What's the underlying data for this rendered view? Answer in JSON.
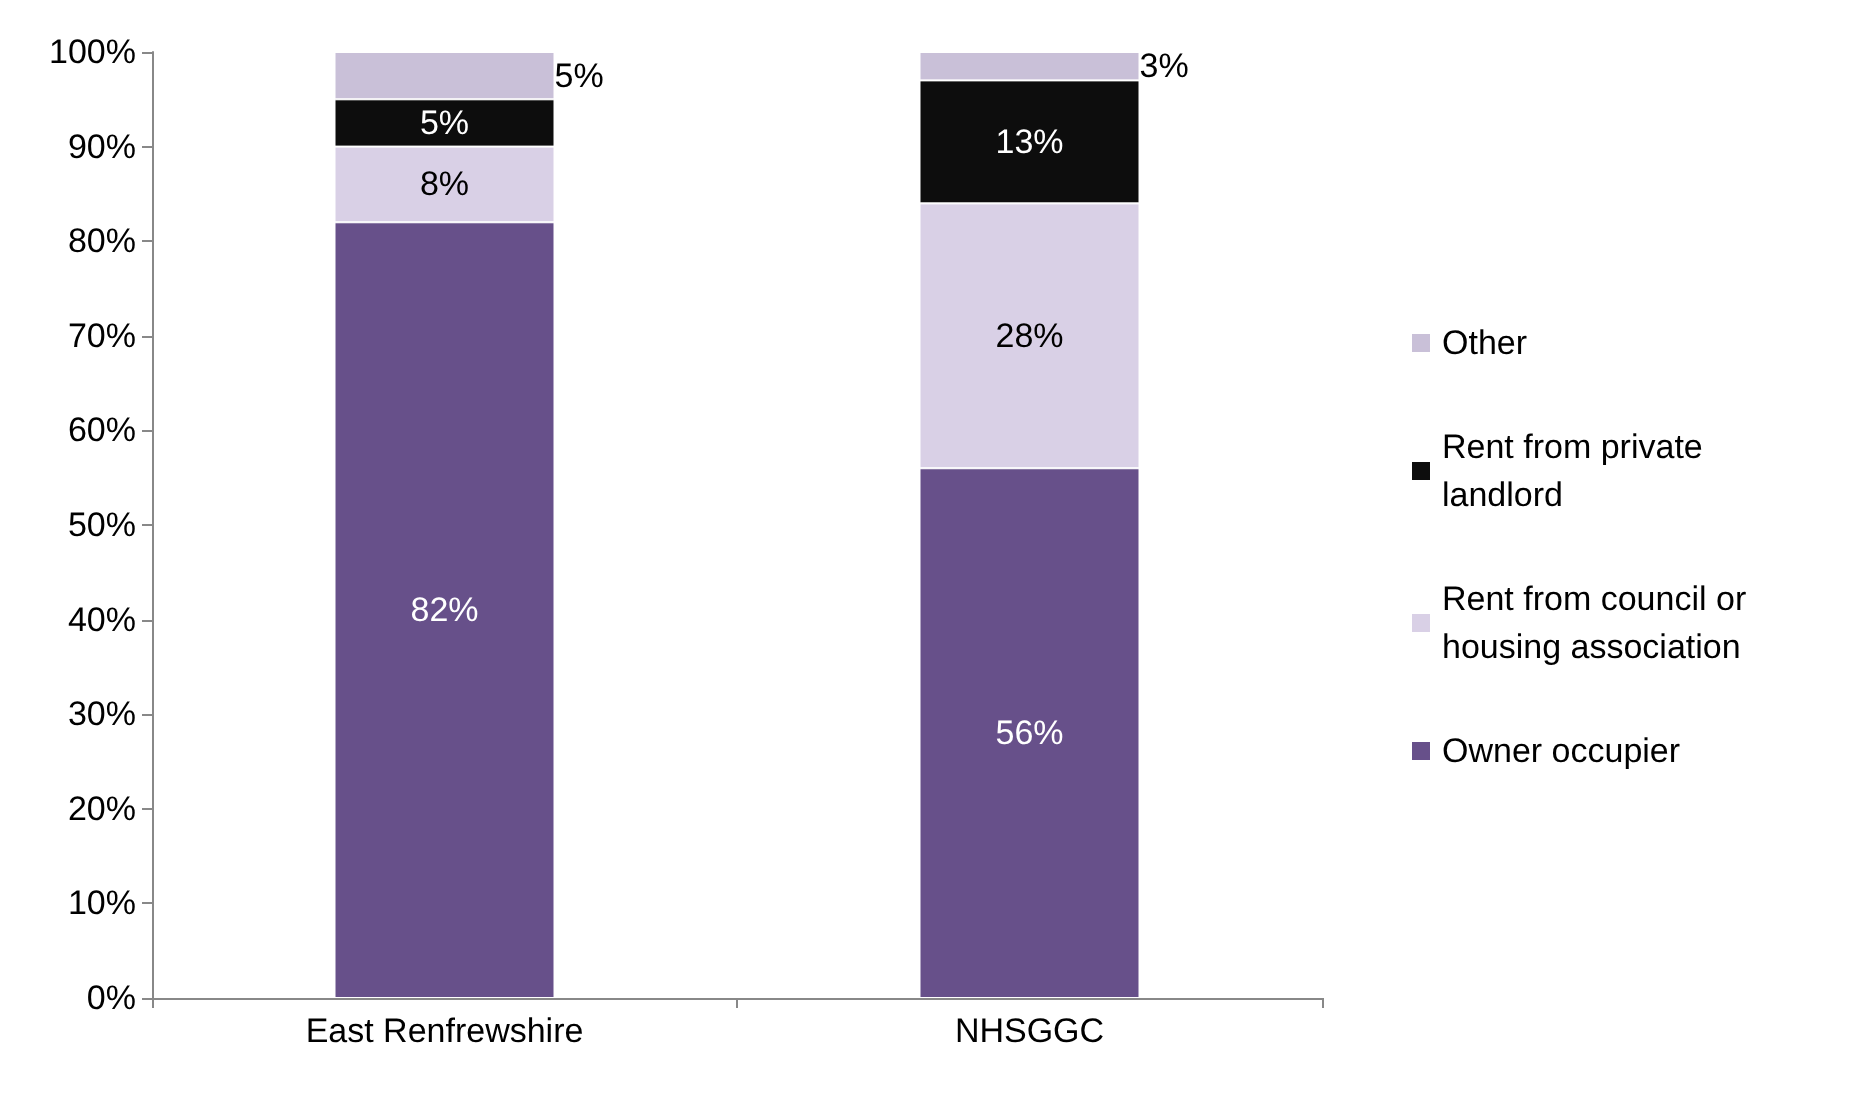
{
  "chart_data": {
    "type": "bar",
    "stacked": true,
    "categories": [
      "East Renfrewshire",
      "NHSGGC"
    ],
    "series": [
      {
        "name": "Owner occupier",
        "color": "#67508a",
        "values": [
          82,
          56
        ],
        "value_labels": [
          "82%",
          "56%"
        ]
      },
      {
        "name": "Rent from council or housing association",
        "color": "#d9d0e6",
        "values": [
          8,
          28
        ],
        "value_labels": [
          "8%",
          "28%"
        ]
      },
      {
        "name": "Rent from private landlord",
        "color": "#0d0d0d",
        "values": [
          5,
          13
        ],
        "value_labels": [
          "5%",
          "13%"
        ]
      },
      {
        "name": "Other",
        "color": "#c9c0d8",
        "values": [
          5,
          3
        ],
        "value_labels": [
          "5%",
          "3%"
        ]
      }
    ],
    "ylim": [
      0,
      100
    ],
    "yticks": [
      {
        "value": 0,
        "label": "0%"
      },
      {
        "value": 10,
        "label": "10%"
      },
      {
        "value": 20,
        "label": "20%"
      },
      {
        "value": 30,
        "label": "30%"
      },
      {
        "value": 40,
        "label": "40%"
      },
      {
        "value": 50,
        "label": "50%"
      },
      {
        "value": 60,
        "label": "60%"
      },
      {
        "value": 70,
        "label": "70%"
      },
      {
        "value": 80,
        "label": "80%"
      },
      {
        "value": 90,
        "label": "90%"
      },
      {
        "value": 100,
        "label": "100%"
      }
    ],
    "grid": false,
    "legend": "right"
  }
}
